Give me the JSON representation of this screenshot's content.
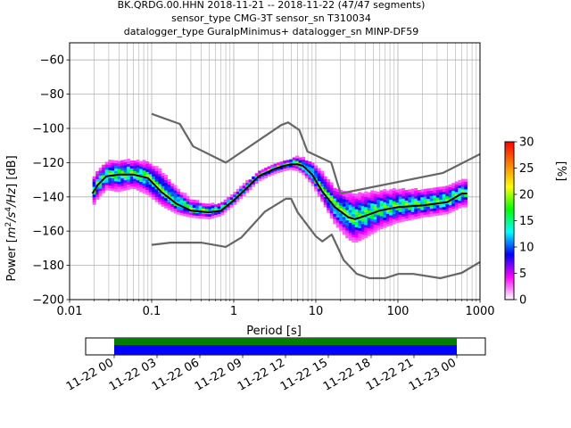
{
  "colors": {
    "nlnm_nhnm": "#666666",
    "median": "#000000",
    "coverage_data": "#008000",
    "coverage_bar": "#0000ff",
    "colormap": [
      "#ffffff",
      "#ff00ff",
      "#0000ff",
      "#00ffff",
      "#00ff00",
      "#ffff00",
      "#ff8000",
      "#ff0000"
    ]
  },
  "chart_data": [
    {
      "type": "heatmap",
      "title": [
        "BK.QRDG.00.HHN   2018-11-21 -- 2018-11-22  (47/47 segments)",
        "sensor_type CMG-3T sensor_sn T310034",
        "datalogger_type GuralpMinimus+ datalogger_sn MINP-DF59"
      ],
      "xlabel": "Period [s]",
      "ylabel_parts": [
        "Power [",
        "m",
        "2",
        "/s",
        "4",
        "/Hz",
        "] [dB]"
      ],
      "xscale": "log",
      "xlim": [
        0.01,
        1000
      ],
      "ylim": [
        -200,
        -50
      ],
      "xticks": [
        0.01,
        0.1,
        1,
        10,
        100,
        1000
      ],
      "xtick_labels": [
        "0.01",
        "0.1",
        "1",
        "10",
        "100",
        "1000"
      ],
      "yticks": [
        -200,
        -180,
        -160,
        -140,
        -120,
        -100,
        -80,
        -60
      ],
      "ytick_labels": [
        "-200",
        "-180",
        "-160",
        "-140",
        "-120",
        "-100",
        "-80",
        "-60"
      ],
      "grid": true,
      "colorbar": {
        "label": "[%]",
        "range": [
          0,
          30
        ],
        "ticks": [
          0,
          5,
          10,
          15,
          20,
          25,
          30
        ],
        "tick_labels": [
          "0",
          "5",
          "10",
          "15",
          "20",
          "25",
          "30"
        ]
      },
      "series": [
        {
          "role": "median",
          "x": [
            0.019,
            0.022,
            0.028,
            0.04,
            0.06,
            0.09,
            0.13,
            0.2,
            0.3,
            0.5,
            0.7,
            1,
            1.5,
            2,
            3,
            4,
            5,
            6,
            7,
            9,
            12,
            17,
            25,
            30,
            40,
            60,
            100,
            200,
            400,
            600,
            700
          ],
          "y": [
            -138,
            -133,
            -128,
            -127,
            -127,
            -129,
            -137,
            -144,
            -148,
            -149,
            -148,
            -142,
            -134,
            -128,
            -124,
            -122,
            -121,
            -121,
            -122,
            -127,
            -137,
            -146,
            -152,
            -153,
            -151,
            -148,
            -146,
            -145,
            -143,
            -138,
            -138
          ]
        },
        {
          "role": "upper-noise-model",
          "x": [
            0.1,
            0.22,
            0.32,
            0.8,
            3.8,
            4.6,
            6.3,
            7.9,
            15.4,
            20,
            354.8,
            1000
          ],
          "y": [
            -91.5,
            -97.4,
            -110.5,
            -120,
            -98,
            -96.5,
            -101,
            -113.5,
            -120,
            -138,
            -126,
            -115
          ]
        },
        {
          "role": "lower-noise-model",
          "x": [
            0.1,
            0.17,
            0.4,
            0.8,
            1.24,
            2.4,
            4.3,
            5,
            6,
            10,
            12,
            15.6,
            21.9,
            31.6,
            45,
            70,
            101,
            154,
            328,
            600,
            1000
          ],
          "y": [
            -168,
            -166.7,
            -166.7,
            -169.2,
            -163.7,
            -148.6,
            -141.1,
            -141.1,
            -149,
            -163,
            -166,
            -162,
            -177,
            -185,
            -187.5,
            -187.5,
            -185,
            -185,
            -187.5,
            -184.4,
            -178
          ]
        }
      ],
      "density": {
        "x": [
          0.019,
          0.022,
          0.028,
          0.04,
          0.06,
          0.09,
          0.13,
          0.2,
          0.3,
          0.5,
          0.7,
          1,
          1.5,
          2,
          3,
          4,
          5,
          6,
          7,
          9,
          12,
          17,
          25,
          30,
          40,
          60,
          100,
          200,
          400,
          600,
          700
        ],
        "lower": [
          -146,
          -141,
          -136,
          -137,
          -135,
          -139,
          -145,
          -150,
          -152,
          -153,
          -151,
          -145,
          -137,
          -131,
          -127,
          -125,
          -124,
          -125,
          -127,
          -133,
          -143,
          -156,
          -165,
          -167,
          -164,
          -159,
          -155,
          -152,
          -150,
          -146,
          -146
        ],
        "upper": [
          -130,
          -125,
          -120,
          -119,
          -119,
          -120,
          -125,
          -135,
          -142,
          -145,
          -144,
          -139,
          -131,
          -126,
          -122,
          -120,
          -118,
          -117,
          -118,
          -120,
          -126,
          -135,
          -138,
          -139,
          -138,
          -137,
          -136,
          -136,
          -134,
          -131,
          -131
        ]
      }
    },
    {
      "type": "timeline",
      "xlim": [
        "2018-11-21 22:00",
        "2018-11-23 02:00"
      ],
      "coverage": [
        "2018-11-22 00:00",
        "2018-11-23 00:00"
      ],
      "xtick_labels": [
        "11-22 00",
        "11-22 03",
        "11-22 06",
        "11-22 09",
        "11-22 12",
        "11-22 15",
        "11-22 18",
        "11-22 21",
        "11-23 00"
      ]
    }
  ]
}
